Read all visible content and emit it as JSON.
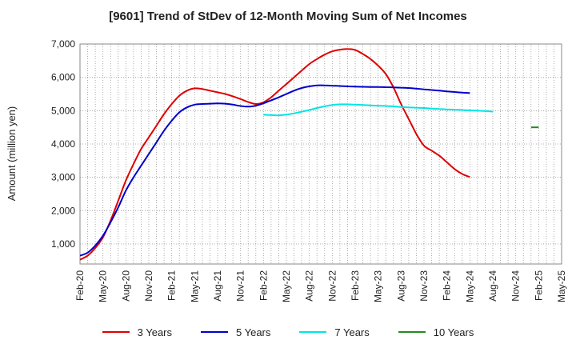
{
  "chart_data": {
    "type": "line",
    "title": "[9601]  Trend of StDev of 12-Month Moving Sum of Net Incomes",
    "xlabel": "",
    "ylabel": "Amount (million yen)",
    "ylim": [
      400,
      7000
    ],
    "yticks": [
      "1,000",
      "2,000",
      "3,000",
      "4,000",
      "5,000",
      "6,000",
      "7,000"
    ],
    "ytick_values": [
      1000,
      2000,
      3000,
      4000,
      5000,
      6000,
      7000
    ],
    "x_categories": [
      "Feb-20",
      "Mar-20",
      "Apr-20",
      "May-20",
      "Jun-20",
      "Jul-20",
      "Aug-20",
      "Sep-20",
      "Oct-20",
      "Nov-20",
      "Dec-20",
      "Jan-21",
      "Feb-21",
      "Mar-21",
      "Apr-21",
      "May-21",
      "Jun-21",
      "Jul-21",
      "Aug-21",
      "Sep-21",
      "Oct-21",
      "Nov-21",
      "Dec-21",
      "Jan-22",
      "Feb-22",
      "Mar-22",
      "Apr-22",
      "May-22",
      "Jun-22",
      "Jul-22",
      "Aug-22",
      "Sep-22",
      "Oct-22",
      "Nov-22",
      "Dec-22",
      "Jan-23",
      "Feb-23",
      "Mar-23",
      "Apr-23",
      "May-23",
      "Jun-23",
      "Jul-23",
      "Aug-23",
      "Sep-23",
      "Oct-23",
      "Nov-23",
      "Dec-23",
      "Jan-24",
      "Feb-24",
      "Mar-24",
      "Apr-24",
      "May-24",
      "Jun-24",
      "Jul-24",
      "Aug-24",
      "Sep-24",
      "Oct-24",
      "Nov-24",
      "Dec-24",
      "Jan-25",
      "Feb-25",
      "Mar-25",
      "Apr-25",
      "May-25"
    ],
    "xticks": [
      "Feb-20",
      "May-20",
      "Aug-20",
      "Nov-20",
      "Feb-21",
      "May-21",
      "Aug-21",
      "Nov-21",
      "Feb-22",
      "May-22",
      "Aug-22",
      "Nov-22",
      "Feb-23",
      "May-23",
      "Aug-23",
      "Nov-23",
      "Feb-24",
      "May-24",
      "Aug-24",
      "Nov-24",
      "Feb-25",
      "May-25"
    ],
    "grid": true,
    "legend_position": "bottom",
    "series": [
      {
        "name": "3 Years",
        "color": "#dd0000",
        "start": "Feb-20",
        "values": [
          530,
          650,
          880,
          1200,
          1700,
          2300,
          2900,
          3400,
          3850,
          4200,
          4550,
          4900,
          5200,
          5450,
          5600,
          5670,
          5650,
          5600,
          5550,
          5500,
          5430,
          5350,
          5260,
          5200,
          5250,
          5400,
          5600,
          5800,
          6000,
          6200,
          6400,
          6550,
          6680,
          6780,
          6830,
          6850,
          6820,
          6700,
          6550,
          6350,
          6100,
          5700,
          5200,
          4750,
          4300,
          3950,
          3800,
          3650,
          3450,
          3250,
          3100,
          3010
        ]
      },
      {
        "name": "5 Years",
        "color": "#0000cc",
        "start": "Feb-20",
        "values": [
          650,
          740,
          950,
          1250,
          1650,
          2100,
          2600,
          3000,
          3350,
          3700,
          4050,
          4400,
          4700,
          4950,
          5100,
          5180,
          5200,
          5210,
          5220,
          5210,
          5180,
          5140,
          5120,
          5150,
          5220,
          5310,
          5400,
          5500,
          5600,
          5680,
          5730,
          5760,
          5760,
          5750,
          5740,
          5730,
          5720,
          5715,
          5710,
          5710,
          5705,
          5700,
          5690,
          5680,
          5660,
          5640,
          5620,
          5600,
          5580,
          5560,
          5540,
          5530
        ]
      },
      {
        "name": "7 Years",
        "color": "#00e5e5",
        "start": "Feb-22",
        "values": [
          4880,
          4870,
          4860,
          4880,
          4920,
          4970,
          5020,
          5080,
          5130,
          5170,
          5190,
          5190,
          5180,
          5170,
          5160,
          5150,
          5140,
          5130,
          5110,
          5100,
          5090,
          5080,
          5060,
          5050,
          5040,
          5030,
          5020,
          5010,
          5000,
          4990,
          4970
        ]
      },
      {
        "name": "10 Years",
        "color": "#228b22",
        "start": "Jan-25",
        "values": [
          4500,
          4500
        ]
      }
    ]
  }
}
